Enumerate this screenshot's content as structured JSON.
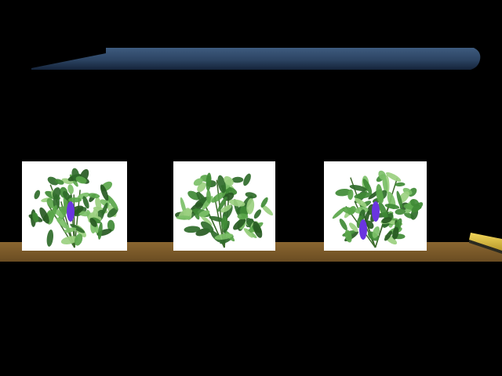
{
  "scene": {
    "background_color": "#000000",
    "overhead_bar": {
      "icon": "overhead-rail-icon",
      "color": "#2c4463"
    },
    "shelf": {
      "color": "#7a5a2a"
    },
    "shelf_marker": {
      "icon": "yellow-marker-icon",
      "color": "#e8c84a"
    },
    "plant_cards": [
      {
        "name": "plant-card-1",
        "background": "#ffffff",
        "icon": "leafy-plant-icon",
        "fruit_count": 1,
        "fruit_color": "#6a35e0"
      },
      {
        "name": "plant-card-2",
        "background": "#ffffff",
        "icon": "leafy-plant-icon",
        "fruit_count": 0,
        "fruit_color": "#6a35e0"
      },
      {
        "name": "plant-card-3",
        "background": "#ffffff",
        "icon": "leafy-plant-icon",
        "fruit_count": 2,
        "fruit_color": "#6a35e0"
      }
    ]
  }
}
